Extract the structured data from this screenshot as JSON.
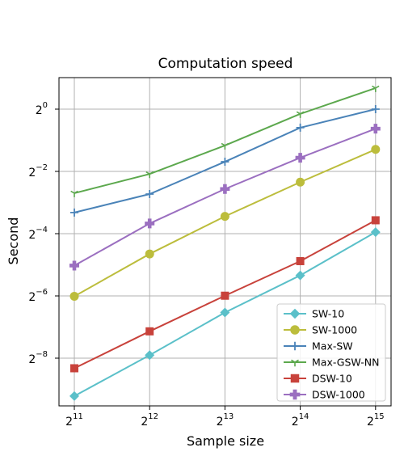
{
  "chart_data": {
    "type": "line",
    "title": "Computation speed",
    "xlabel": "Sample size",
    "ylabel": "Second",
    "x_scale": "log2",
    "y_scale": "log2",
    "x": [
      2048,
      4096,
      8192,
      16384,
      32768
    ],
    "x_ticks": [
      {
        "base": "2",
        "exp": "11"
      },
      {
        "base": "2",
        "exp": "12"
      },
      {
        "base": "2",
        "exp": "13"
      },
      {
        "base": "2",
        "exp": "14"
      },
      {
        "base": "2",
        "exp": "15"
      }
    ],
    "y_ticks": [
      {
        "base": "2",
        "exp": "0"
      },
      {
        "base": "2",
        "exp": "−2"
      },
      {
        "base": "2",
        "exp": "−4"
      },
      {
        "base": "2",
        "exp": "−6"
      },
      {
        "base": "2",
        "exp": "−8"
      }
    ],
    "grid": true,
    "legend_position": "lower-right",
    "series": [
      {
        "name": "SW-10",
        "color": "#5bc0c9",
        "marker": "diamond",
        "values": [
          0.00168,
          0.00418,
          0.0108,
          0.0247,
          0.0646
        ]
      },
      {
        "name": "SW-1000",
        "color": "#bcbd3c",
        "marker": "circle",
        "values": [
          0.0155,
          0.0398,
          0.0918,
          0.197,
          0.408
        ]
      },
      {
        "name": "Max-SW",
        "color": "#4a83b8",
        "marker": "plus",
        "values": [
          0.1,
          0.151,
          0.31,
          0.662,
          1.0
        ]
      },
      {
        "name": "Max-GSW-NN",
        "color": "#5ca84d",
        "marker": "tri_down",
        "values": [
          0.154,
          0.236,
          0.445,
          0.9,
          1.6
        ]
      },
      {
        "name": "DSW-10",
        "color": "#c8423b",
        "marker": "square",
        "values": [
          0.00312,
          0.0071,
          0.0157,
          0.0339,
          0.0842
        ]
      },
      {
        "name": "DSW-1000",
        "color": "#9b6fc0",
        "marker": "plus_thick",
        "values": [
          0.0307,
          0.0784,
          0.169,
          0.339,
          0.647
        ]
      }
    ]
  }
}
